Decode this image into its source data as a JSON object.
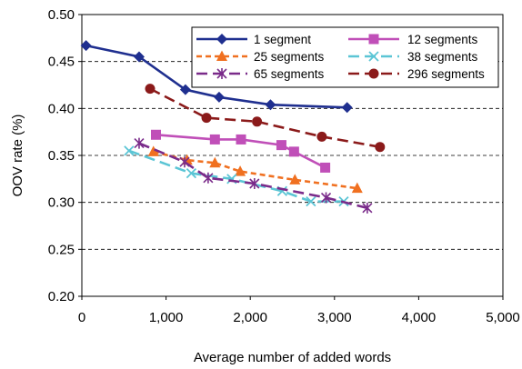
{
  "chart_data": {
    "type": "line",
    "title": "",
    "xlabel": "Average number of added words",
    "ylabel": "OOV rate (%)",
    "xlim": [
      0,
      5000
    ],
    "ylim": [
      0.2,
      0.5
    ],
    "x_ticks": [
      0,
      1000,
      2000,
      3000,
      4000,
      5000
    ],
    "x_tick_labels": [
      "0",
      "1,000",
      "2,000",
      "3,000",
      "4,000",
      "5,000"
    ],
    "y_ticks": [
      0.2,
      0.25,
      0.3,
      0.35,
      0.4,
      0.45,
      0.5
    ],
    "y_tick_labels": [
      "0.20",
      "0.25",
      "0.30",
      "0.35",
      "0.40",
      "0.45",
      "0.50"
    ],
    "grid": "horizontal dashed",
    "legend_position": "top-right",
    "series": [
      {
        "name": "1 segment",
        "color": "#1f2f8f",
        "dash": "solid",
        "marker": "diamond",
        "x": [
          50,
          680,
          1230,
          1630,
          2240,
          3150
        ],
        "y": [
          0.467,
          0.455,
          0.42,
          0.412,
          0.404,
          0.401
        ]
      },
      {
        "name": "12 segments",
        "color": "#c04fb8",
        "dash": "solid",
        "marker": "square",
        "x": [
          880,
          1580,
          1890,
          2370,
          2520,
          2890
        ],
        "y": [
          0.372,
          0.367,
          0.367,
          0.361,
          0.354,
          0.337
        ]
      },
      {
        "name": "25 segments",
        "color": "#f07020",
        "dash": "short-dash",
        "marker": "triangle",
        "x": [
          850,
          1250,
          1580,
          1880,
          2530,
          3270
        ],
        "y": [
          0.354,
          0.345,
          0.342,
          0.333,
          0.324,
          0.315
        ]
      },
      {
        "name": "38 segments",
        "color": "#5bc5d5",
        "dash": "long-dash",
        "marker": "x",
        "x": [
          560,
          1300,
          1780,
          2380,
          2720,
          3110
        ],
        "y": [
          0.355,
          0.331,
          0.325,
          0.312,
          0.301,
          0.301
        ]
      },
      {
        "name": "65 segments",
        "color": "#7a2b8a",
        "dash": "long-dash",
        "marker": "star",
        "x": [
          680,
          1220,
          1500,
          2050,
          2900,
          3390
        ],
        "y": [
          0.363,
          0.343,
          0.326,
          0.32,
          0.305,
          0.294
        ]
      },
      {
        "name": "296 segments",
        "color": "#8b1a1a",
        "dash": "long-dash",
        "marker": "circle",
        "x": [
          810,
          1480,
          2080,
          2850,
          3540
        ],
        "y": [
          0.421,
          0.39,
          0.386,
          0.37,
          0.359
        ]
      }
    ]
  }
}
